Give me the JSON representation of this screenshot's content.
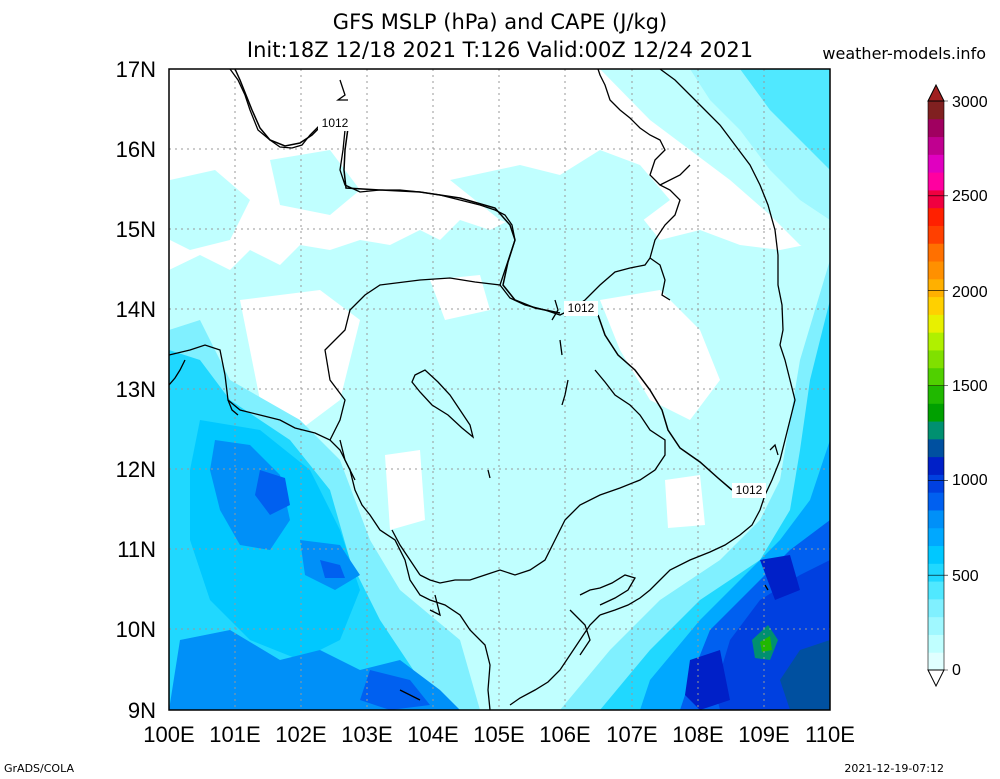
{
  "header": {
    "title_line1": "GFS MSLP (hPa) and CAPE (J/kg)",
    "title_line2": "Init:18Z 12/18 2021 T:126 Valid:00Z 12/24 2021",
    "site": "weather-models.info"
  },
  "footer": {
    "left": "GrADS/COLA",
    "right": "2021-12-19-07:12"
  },
  "map": {
    "lat_labels": [
      "17N",
      "16N",
      "15N",
      "14N",
      "13N",
      "12N",
      "11N",
      "10N",
      "9N"
    ],
    "lon_labels": [
      "100E",
      "101E",
      "102E",
      "103E",
      "104E",
      "105E",
      "106E",
      "107E",
      "108E",
      "109E",
      "110E"
    ],
    "isobar_labels": [
      "1012",
      "1012",
      "1012"
    ]
  },
  "colorbar": {
    "tick_labels": [
      "3000",
      "2500",
      "2000",
      "1500",
      "1000",
      "500",
      "0"
    ],
    "colors": [
      "#e0ffff",
      "#c0ffff",
      "#a0f8ff",
      "#80f0ff",
      "#50e8ff",
      "#20d8ff",
      "#00c8ff",
      "#00a8ff",
      "#0090f8",
      "#0060f0",
      "#0040e0",
      "#0020c8",
      "#0050a0",
      "#009070",
      "#00a000",
      "#20b800",
      "#50d000",
      "#80e000",
      "#b0f000",
      "#e8f000",
      "#ffd000",
      "#ffb000",
      "#ff9000",
      "#ff7000",
      "#ff4000",
      "#ff2000",
      "#f00040",
      "#ff00a0",
      "#e000c0",
      "#c00090",
      "#a00060",
      "#802020"
    ]
  }
}
